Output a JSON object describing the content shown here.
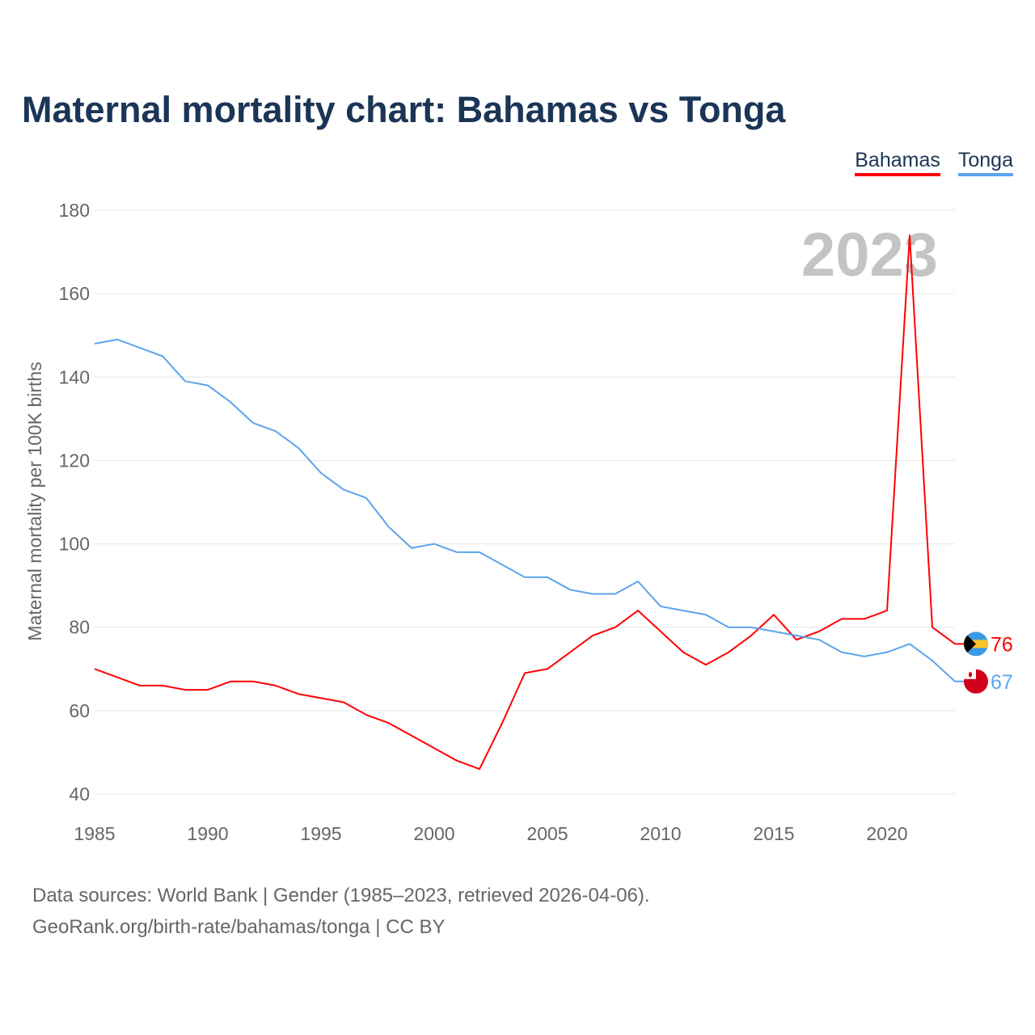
{
  "title": "Maternal mortality chart: Bahamas vs Tonga",
  "source_line1": "Data sources: World Bank | Gender (1985–2023, retrieved 2026-04-06).",
  "source_line2": "GeoRank.org/birth-rate/bahamas/tonga | CC BY",
  "chart_data": {
    "type": "line",
    "title": "Maternal mortality chart: Bahamas vs Tonga",
    "xlabel": "",
    "ylabel": "Maternal mortality per 100K births",
    "xlim": [
      1985,
      2023
    ],
    "ylim": [
      40,
      180
    ],
    "x_ticks": [
      1985,
      1990,
      1995,
      2000,
      2005,
      2010,
      2015,
      2020
    ],
    "y_ticks": [
      40,
      60,
      80,
      100,
      120,
      140,
      160,
      180
    ],
    "grid": true,
    "legend_position": "top-right",
    "year_watermark": "2023",
    "x": [
      1985,
      1986,
      1987,
      1988,
      1989,
      1990,
      1991,
      1992,
      1993,
      1994,
      1995,
      1996,
      1997,
      1998,
      1999,
      2000,
      2001,
      2002,
      2003,
      2004,
      2005,
      2006,
      2007,
      2008,
      2009,
      2010,
      2011,
      2012,
      2013,
      2014,
      2015,
      2016,
      2017,
      2018,
      2019,
      2020,
      2021,
      2022,
      2023
    ],
    "series": [
      {
        "name": "Bahamas",
        "color": "#ff0000",
        "end_label": "76",
        "values": [
          70,
          68,
          66,
          66,
          65,
          65,
          67,
          67,
          66,
          64,
          63,
          62,
          59,
          57,
          54,
          51,
          48,
          46,
          57,
          69,
          70,
          74,
          78,
          80,
          84,
          79,
          74,
          71,
          74,
          78,
          83,
          77,
          79,
          82,
          82,
          84,
          174,
          80,
          76
        ]
      },
      {
        "name": "Tonga",
        "color": "#5ba4ec",
        "end_label": "67",
        "values": [
          148,
          149,
          147,
          145,
          139,
          138,
          134,
          129,
          127,
          123,
          117,
          113,
          111,
          104,
          99,
          100,
          98,
          98,
          95,
          92,
          92,
          89,
          88,
          88,
          91,
          85,
          84,
          83,
          80,
          80,
          79,
          78,
          77,
          74,
          73,
          74,
          76,
          72,
          67
        ]
      }
    ]
  }
}
